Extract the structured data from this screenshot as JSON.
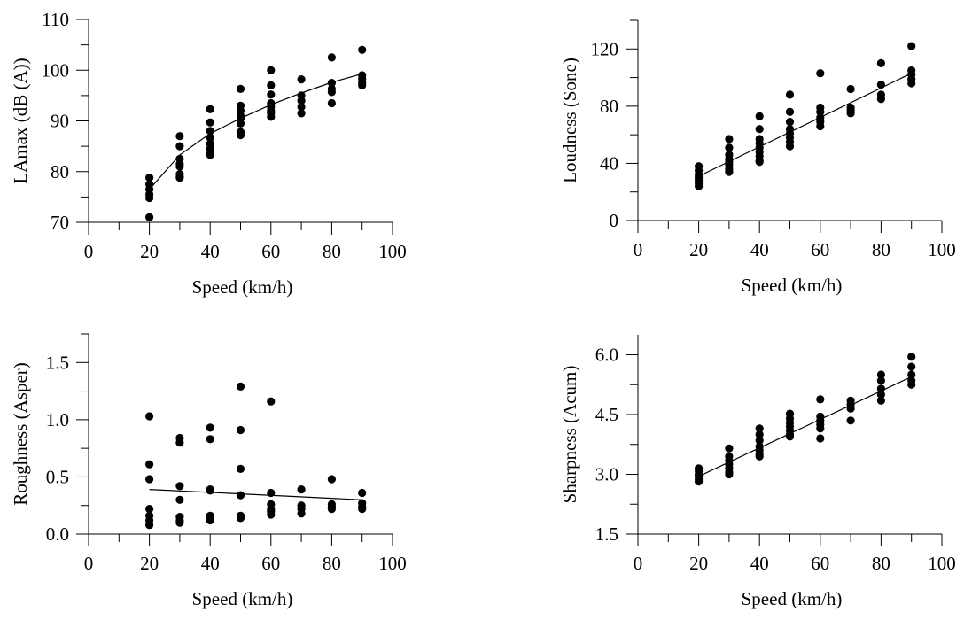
{
  "chart_data": [
    {
      "type": "scatter",
      "xlabel": "Speed (km/h)",
      "ylabel": "LAmax (dB (A))",
      "xlim": [
        0,
        100
      ],
      "ylim": [
        70,
        110
      ],
      "xticks": [
        "0",
        "20",
        "40",
        "60",
        "80",
        "100"
      ],
      "yticks": [
        "70",
        "80",
        "90",
        "100",
        "110"
      ],
      "series": [
        {
          "points": [
            [
              20,
              78.8
            ],
            [
              20,
              77.5
            ],
            [
              20,
              76.5
            ],
            [
              20,
              75.5
            ],
            [
              20,
              74.8
            ],
            [
              20,
              71
            ],
            [
              30,
              87
            ],
            [
              30,
              85
            ],
            [
              30,
              82.5
            ],
            [
              30,
              81.5
            ],
            [
              30,
              81
            ],
            [
              30,
              79.5
            ],
            [
              30,
              79
            ],
            [
              30,
              78.8
            ],
            [
              40,
              92.3
            ],
            [
              40,
              89.7
            ],
            [
              40,
              88
            ],
            [
              40,
              86.7
            ],
            [
              40,
              85.5
            ],
            [
              40,
              84.5
            ],
            [
              40,
              83.5
            ],
            [
              40,
              83.3
            ],
            [
              50,
              96.3
            ],
            [
              50,
              93
            ],
            [
              50,
              92
            ],
            [
              50,
              91
            ],
            [
              50,
              90.5
            ],
            [
              50,
              89.5
            ],
            [
              50,
              87.8
            ],
            [
              50,
              87.2
            ],
            [
              60,
              100
            ],
            [
              60,
              97
            ],
            [
              60,
              95.2
            ],
            [
              60,
              93.5
            ],
            [
              60,
              92.8
            ],
            [
              60,
              92
            ],
            [
              60,
              91.5
            ],
            [
              60,
              90.8
            ],
            [
              70,
              98.2
            ],
            [
              70,
              95
            ],
            [
              70,
              94
            ],
            [
              70,
              92.8
            ],
            [
              70,
              91.5
            ],
            [
              80,
              102.5
            ],
            [
              80,
              97.5
            ],
            [
              80,
              96.3
            ],
            [
              80,
              95.7
            ],
            [
              80,
              93.5
            ],
            [
              90,
              104
            ],
            [
              90,
              99
            ],
            [
              90,
              98.3
            ],
            [
              90,
              97.5
            ],
            [
              90,
              97
            ]
          ]
        }
      ],
      "trend": [
        [
          20,
          76.5
        ],
        [
          30,
          83.3
        ],
        [
          40,
          87.5
        ],
        [
          50,
          90.5
        ],
        [
          60,
          93.2
        ],
        [
          70,
          95.5
        ],
        [
          80,
          97.6
        ],
        [
          90,
          99.3
        ]
      ]
    },
    {
      "type": "scatter",
      "xlabel": "Speed (km/h)",
      "ylabel": "Loudness (Sone)",
      "xlim": [
        0,
        100
      ],
      "ylim": [
        0,
        140
      ],
      "xticks": [
        "0",
        "20",
        "40",
        "60",
        "80",
        "100"
      ],
      "yticks": [
        "0",
        "40",
        "80",
        "120"
      ],
      "series": [
        {
          "points": [
            [
              20,
              38
            ],
            [
              20,
              35
            ],
            [
              20,
              32
            ],
            [
              20,
              30
            ],
            [
              20,
              28
            ],
            [
              20,
              26
            ],
            [
              20,
              24
            ],
            [
              30,
              57
            ],
            [
              30,
              51
            ],
            [
              30,
              46
            ],
            [
              30,
              43
            ],
            [
              30,
              41
            ],
            [
              30,
              39
            ],
            [
              30,
              36
            ],
            [
              30,
              34
            ],
            [
              40,
              73
            ],
            [
              40,
              64
            ],
            [
              40,
              57
            ],
            [
              40,
              54
            ],
            [
              40,
              51
            ],
            [
              40,
              48
            ],
            [
              40,
              45
            ],
            [
              40,
              42
            ],
            [
              40,
              41
            ],
            [
              50,
              88
            ],
            [
              50,
              76
            ],
            [
              50,
              69
            ],
            [
              50,
              64
            ],
            [
              50,
              61
            ],
            [
              50,
              58
            ],
            [
              50,
              55
            ],
            [
              50,
              52
            ],
            [
              60,
              103
            ],
            [
              60,
              79
            ],
            [
              60,
              76
            ],
            [
              60,
              72
            ],
            [
              60,
              69
            ],
            [
              60,
              66
            ],
            [
              70,
              92
            ],
            [
              70,
              79
            ],
            [
              70,
              77
            ],
            [
              70,
              75
            ],
            [
              80,
              110
            ],
            [
              80,
              95
            ],
            [
              80,
              88
            ],
            [
              80,
              85
            ],
            [
              90,
              122
            ],
            [
              90,
              105
            ],
            [
              90,
              102
            ],
            [
              90,
              99
            ],
            [
              90,
              96
            ]
          ]
        }
      ],
      "trend": [
        [
          20,
          31
        ],
        [
          90,
          103
        ]
      ]
    },
    {
      "type": "scatter",
      "xlabel": "Speed (km/h)",
      "ylabel": "Roughness (Asper)",
      "xlim": [
        0,
        100
      ],
      "ylim": [
        0,
        1.75
      ],
      "xticks": [
        "0",
        "20",
        "40",
        "60",
        "80",
        "100"
      ],
      "yticks": [
        "0.0",
        "0.5",
        "1.0",
        "1.5"
      ],
      "series": [
        {
          "points": [
            [
              20,
              1.03
            ],
            [
              20,
              0.61
            ],
            [
              20,
              0.48
            ],
            [
              20,
              0.22
            ],
            [
              20,
              0.16
            ],
            [
              20,
              0.12
            ],
            [
              20,
              0.08
            ],
            [
              30,
              0.84
            ],
            [
              30,
              0.8
            ],
            [
              30,
              0.42
            ],
            [
              30,
              0.3
            ],
            [
              30,
              0.15
            ],
            [
              30,
              0.12
            ],
            [
              30,
              0.1
            ],
            [
              40,
              0.93
            ],
            [
              40,
              0.83
            ],
            [
              40,
              0.39
            ],
            [
              40,
              0.38
            ],
            [
              40,
              0.16
            ],
            [
              40,
              0.14
            ],
            [
              40,
              0.12
            ],
            [
              50,
              1.29
            ],
            [
              50,
              0.91
            ],
            [
              50,
              0.57
            ],
            [
              50,
              0.34
            ],
            [
              50,
              0.16
            ],
            [
              50,
              0.14
            ],
            [
              60,
              1.16
            ],
            [
              60,
              0.36
            ],
            [
              60,
              0.26
            ],
            [
              60,
              0.22
            ],
            [
              60,
              0.2
            ],
            [
              60,
              0.17
            ],
            [
              70,
              0.39
            ],
            [
              70,
              0.25
            ],
            [
              70,
              0.22
            ],
            [
              70,
              0.18
            ],
            [
              80,
              0.48
            ],
            [
              80,
              0.26
            ],
            [
              80,
              0.24
            ],
            [
              80,
              0.22
            ],
            [
              90,
              0.36
            ],
            [
              90,
              0.27
            ],
            [
              90,
              0.24
            ],
            [
              90,
              0.22
            ]
          ]
        }
      ],
      "trend": [
        [
          20,
          0.39
        ],
        [
          90,
          0.3
        ]
      ]
    },
    {
      "type": "scatter",
      "xlabel": "Speed (km/h)",
      "ylabel": "Sharpness (Acum)",
      "xlim": [
        0,
        100
      ],
      "ylim": [
        1.5,
        6.5
      ],
      "xticks": [
        "0",
        "20",
        "40",
        "60",
        "80",
        "100"
      ],
      "yticks": [
        "1.5",
        "3.0",
        "4.5",
        "6.0"
      ],
      "series": [
        {
          "points": [
            [
              20,
              3.15
            ],
            [
              20,
              3.08
            ],
            [
              20,
              3.0
            ],
            [
              20,
              2.95
            ],
            [
              20,
              2.88
            ],
            [
              20,
              2.82
            ],
            [
              30,
              3.65
            ],
            [
              30,
              3.45
            ],
            [
              30,
              3.35
            ],
            [
              30,
              3.25
            ],
            [
              30,
              3.15
            ],
            [
              30,
              3.05
            ],
            [
              30,
              3.0
            ],
            [
              40,
              4.15
            ],
            [
              40,
              4.0
            ],
            [
              40,
              3.85
            ],
            [
              40,
              3.7
            ],
            [
              40,
              3.6
            ],
            [
              40,
              3.5
            ],
            [
              40,
              3.45
            ],
            [
              50,
              4.52
            ],
            [
              50,
              4.4
            ],
            [
              50,
              4.3
            ],
            [
              50,
              4.2
            ],
            [
              50,
              4.1
            ],
            [
              50,
              4.0
            ],
            [
              50,
              3.95
            ],
            [
              60,
              4.88
            ],
            [
              60,
              4.45
            ],
            [
              60,
              4.35
            ],
            [
              60,
              4.25
            ],
            [
              60,
              4.15
            ],
            [
              60,
              3.9
            ],
            [
              70,
              4.85
            ],
            [
              70,
              4.75
            ],
            [
              70,
              4.65
            ],
            [
              70,
              4.35
            ],
            [
              80,
              5.5
            ],
            [
              80,
              5.35
            ],
            [
              80,
              5.15
            ],
            [
              80,
              5.0
            ],
            [
              80,
              4.85
            ],
            [
              90,
              5.95
            ],
            [
              90,
              5.7
            ],
            [
              90,
              5.5
            ],
            [
              90,
              5.35
            ],
            [
              90,
              5.25
            ]
          ]
        }
      ],
      "trend": [
        [
          20,
          2.95
        ],
        [
          90,
          5.45
        ]
      ]
    }
  ]
}
